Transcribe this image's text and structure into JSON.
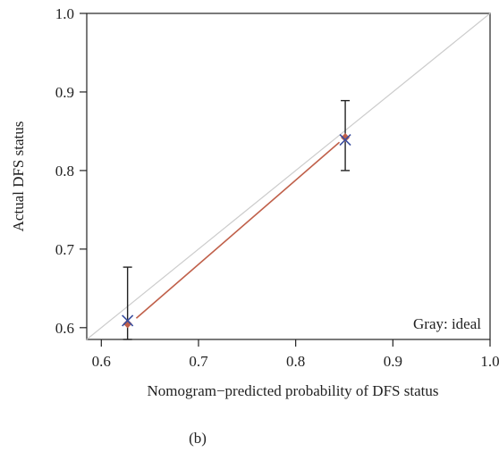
{
  "chart_data": {
    "type": "scatter",
    "title": "",
    "xlabel": "Nomogram−predicted probability of DFS status",
    "ylabel": "Actual DFS status",
    "xlim": [
      0.585,
      1.0
    ],
    "ylim": [
      0.585,
      1.0
    ],
    "x_ticks": [
      0.6,
      0.7,
      0.8,
      0.9,
      1.0
    ],
    "x_tick_labels": [
      "0.6",
      "0.7",
      "0.8",
      "0.9",
      "1.0"
    ],
    "y_ticks": [
      0.6,
      0.7,
      0.8,
      0.9,
      1.0
    ],
    "y_tick_labels": [
      "0.6",
      "0.7",
      "0.8",
      "0.9",
      "1.0"
    ],
    "grid": false,
    "annotation": "Gray: ideal",
    "caption": "(b)",
    "series": [
      {
        "points": [
          {
            "x": 0.627,
            "y": 0.605,
            "lower": 0.585,
            "upper": 0.677
          },
          {
            "x": 0.851,
            "y": 0.842,
            "lower": 0.8,
            "upper": 0.889
          }
        ],
        "color": "#c0604a"
      },
      {
        "points": [
          {
            "x": 0.627,
            "y": 0.609
          },
          {
            "x": 0.851,
            "y": 0.839
          }
        ],
        "color": "#3a4fa0"
      }
    ],
    "lines": [
      {
        "x": [
          0.585,
          1.0
        ],
        "y": [
          0.585,
          1.0
        ],
        "color": "#cccccc"
      },
      {
        "x": [
          0.636,
          0.845
        ],
        "y": [
          0.612,
          0.836
        ],
        "color": "#c0604a"
      }
    ],
    "colors": {
      "ideal": "#cccccc",
      "apparent": "#c0604a",
      "bias_corrected": "#3a4fa0",
      "errorbar": "#222222",
      "axis": "#222222"
    }
  }
}
